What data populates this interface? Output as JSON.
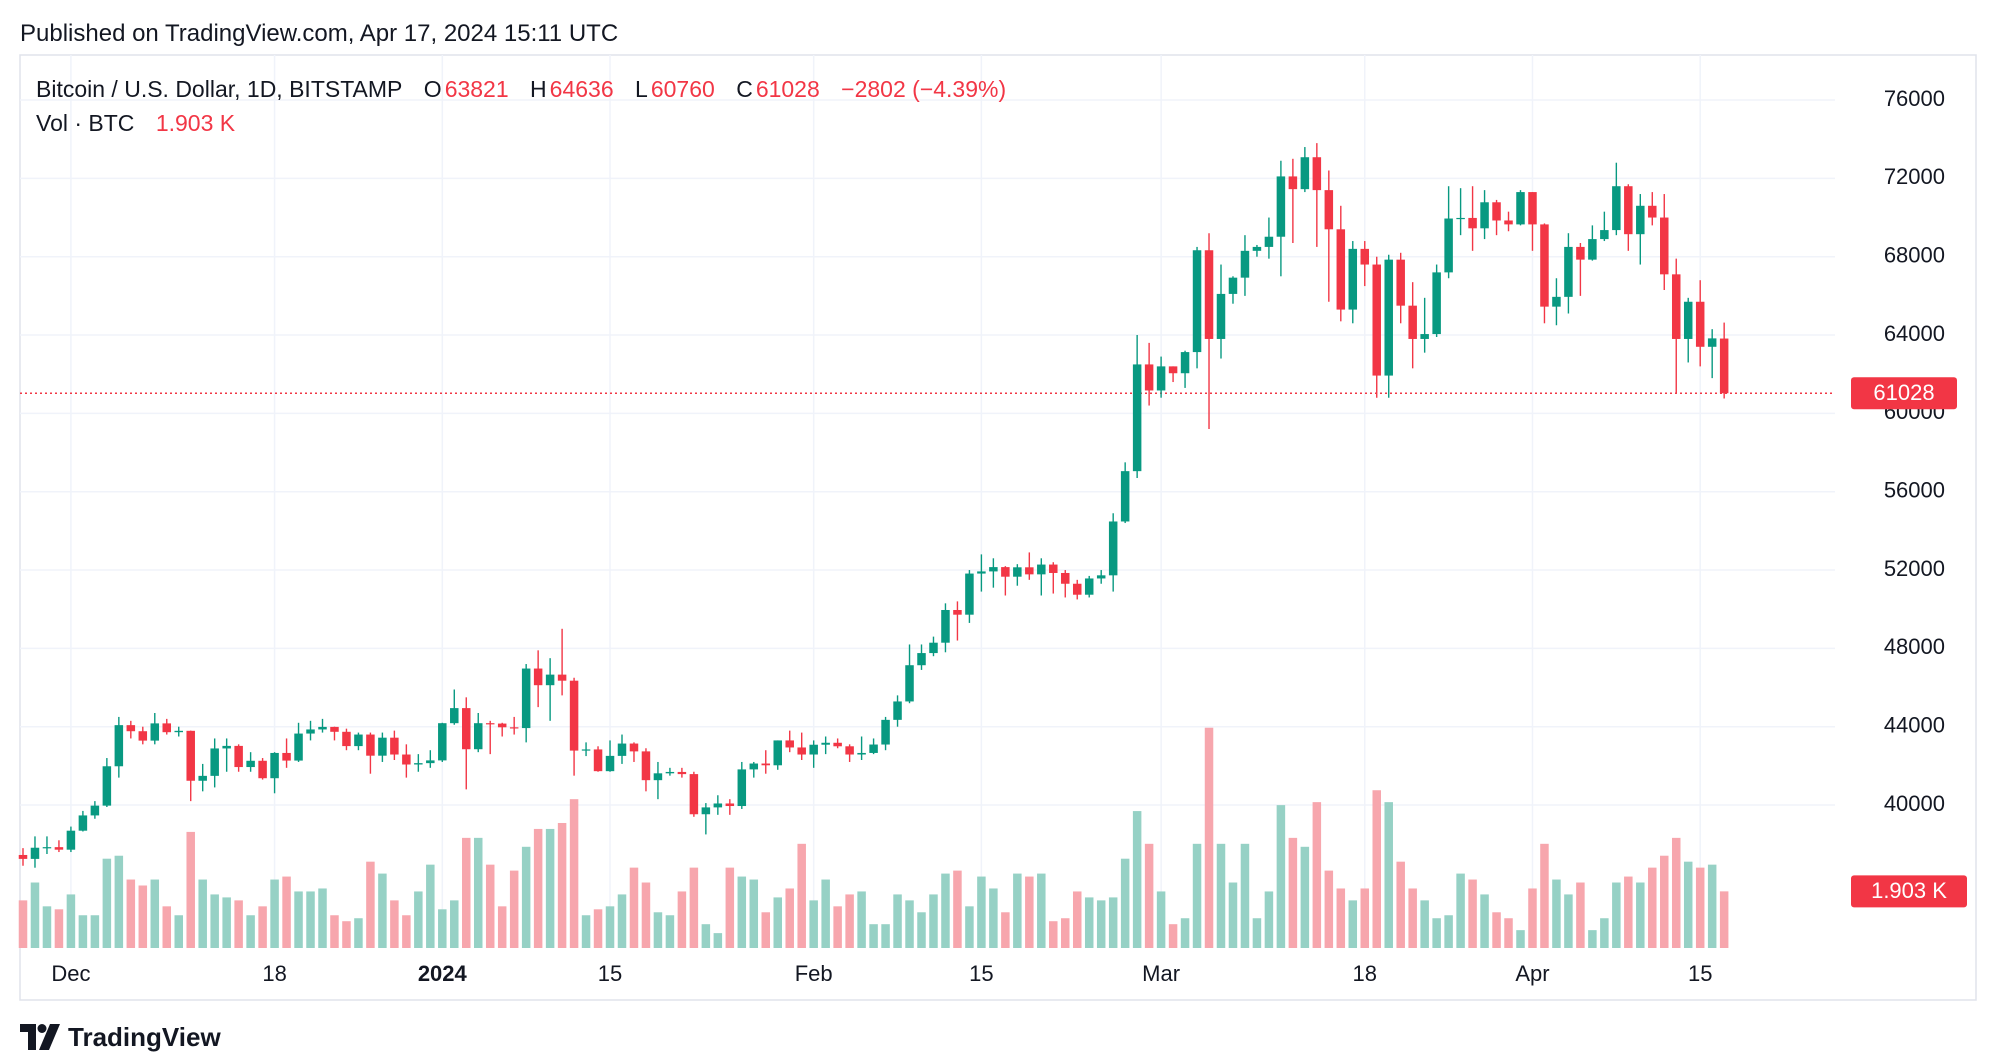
{
  "header": {
    "published": "Published on TradingView.com, Apr 17, 2024 15:11 UTC",
    "brand": "TradingView"
  },
  "chart_data": {
    "type": "candlestick",
    "title": "Bitcoin / U.S. Dollar, 1D, BITSTAMP",
    "legend_labels": {
      "open": "O",
      "high": "H",
      "low": "L",
      "close": "C"
    },
    "change_label": "−2802 (−4.39%)",
    "volume_title": "Vol · BTC",
    "volume_label": "1.903 K",
    "categories": [
      null,
      null,
      null,
      null,
      "Dec",
      null,
      null,
      null,
      null,
      null,
      null,
      null,
      null,
      null,
      null,
      null,
      null,
      null,
      null,
      null,
      null,
      "18",
      null,
      null,
      null,
      null,
      null,
      null,
      null,
      null,
      null,
      null,
      null,
      null,
      null,
      "2024",
      null,
      null,
      null,
      null,
      null,
      null,
      null,
      null,
      null,
      null,
      null,
      null,
      null,
      "15",
      null,
      null,
      null,
      null,
      null,
      null,
      null,
      null,
      null,
      null,
      null,
      null,
      null,
      null,
      null,
      null,
      "Feb",
      null,
      null,
      null,
      null,
      null,
      null,
      null,
      null,
      null,
      null,
      null,
      null,
      null,
      "15",
      null,
      null,
      null,
      null,
      null,
      null,
      null,
      null,
      null,
      null,
      null,
      null,
      null,
      null,
      "Mar",
      null,
      null,
      null,
      null,
      null,
      null,
      null,
      null,
      null,
      null,
      null,
      null,
      null,
      null,
      null,
      null,
      "18",
      null,
      null,
      null,
      null,
      null,
      null,
      null,
      null,
      null,
      null,
      null,
      null,
      null,
      "Apr",
      null,
      null,
      null,
      null,
      null,
      null,
      null,
      null,
      null,
      null,
      null,
      null,
      null,
      "15",
      null,
      null
    ],
    "open": [
      37450,
      37250,
      37820,
      37850,
      37720,
      38690,
      39470,
      39970,
      41980,
      44080,
      43770,
      43290,
      44170,
      43720,
      43790,
      41240,
      41490,
      42890,
      43020,
      41940,
      42260,
      41370,
      42660,
      42270,
      43650,
      43860,
      43990,
      43740,
      43010,
      43600,
      42520,
      43440,
      42580,
      42070,
      42140,
      42280,
      44180,
      44950,
      42850,
      44180,
      44160,
      43970,
      43930,
      46970,
      46120,
      46660,
      46350,
      42780,
      42840,
      41730,
      42510,
      43140,
      42740,
      41270,
      41620,
      41690,
      41580,
      39530,
      39880,
      40080,
      39950,
      41820,
      42120,
      42030,
      43300,
      42940,
      42580,
      43080,
      43180,
      43000,
      42580,
      42660,
      43090,
      44350,
      45290,
      47140,
      47760,
      48290,
      49960,
      49720,
      51820,
      51930,
      52150,
      51660,
      52140,
      51780,
      52280,
      51850,
      51300,
      50740,
      51570,
      51730,
      54480,
      57050,
      62500,
      61170,
      62400,
      62050,
      63130,
      68330,
      63800,
      66100,
      66930,
      68300,
      68500,
      69020,
      72100,
      71450,
      73080,
      71400,
      69400,
      65300,
      68400,
      67600,
      61930,
      67850,
      65500,
      63800,
      64050,
      67200,
      69950,
      69980,
      69450,
      70780,
      69850,
      69650,
      71300,
      69650,
      65450,
      65950,
      68500,
      67850,
      68900,
      69360,
      71600,
      69150,
      70600,
      70000,
      67100,
      63800,
      65700,
      63400,
      63821
    ],
    "high": [
      37800,
      38400,
      38400,
      38200,
      38900,
      39700,
      40200,
      42400,
      44500,
      44300,
      44000,
      44700,
      44400,
      44000,
      43800,
      42100,
      43400,
      43400,
      43100,
      42700,
      42400,
      42700,
      43400,
      44200,
      44300,
      44400,
      44000,
      43900,
      43700,
      43700,
      43700,
      43800,
      43100,
      42600,
      42800,
      44200,
      45900,
      45500,
      44700,
      44300,
      44200,
      44500,
      47200,
      47900,
      47500,
      49000,
      46500,
      43200,
      43000,
      43300,
      43600,
      43200,
      42900,
      42200,
      41900,
      41900,
      41700,
      40100,
      40500,
      40300,
      42200,
      42200,
      42800,
      43300,
      43800,
      43700,
      43300,
      43500,
      43400,
      43100,
      43500,
      43400,
      44500,
      45600,
      48200,
      48200,
      48600,
      50300,
      50400,
      52000,
      52800,
      52600,
      52200,
      52300,
      52900,
      52600,
      52400,
      52000,
      51500,
      51700,
      52000,
      54900,
      57500,
      64000,
      63600,
      62900,
      62400,
      63200,
      68500,
      69200,
      67600,
      67000,
      69100,
      68600,
      70000,
      72900,
      73000,
      73600,
      73800,
      72400,
      70600,
      68800,
      68800,
      68000,
      68100,
      68200,
      66700,
      65900,
      67600,
      71600,
      71500,
      71600,
      71400,
      70900,
      70300,
      71400,
      71300,
      69700,
      66900,
      69200,
      68700,
      69600,
      70300,
      72800,
      71700,
      71200,
      71300,
      71200,
      67900,
      65900,
      66800,
      64300,
      64636
    ],
    "low": [
      36900,
      36800,
      37500,
      37600,
      37600,
      38650,
      39300,
      39900,
      41400,
      43400,
      43100,
      43100,
      43600,
      43500,
      40200,
      40700,
      40900,
      41700,
      41700,
      41700,
      41300,
      40600,
      41900,
      42200,
      43300,
      43700,
      43300,
      42800,
      42800,
      41600,
      42200,
      42300,
      41400,
      41700,
      41900,
      42200,
      44100,
      40800,
      42700,
      42600,
      43500,
      43600,
      43200,
      45000,
      44300,
      45600,
      41500,
      42500,
      41700,
      41700,
      42100,
      42200,
      40700,
      40300,
      41500,
      41400,
      39400,
      38500,
      39500,
      39500,
      39800,
      41400,
      41600,
      41800,
      42700,
      42300,
      41900,
      42600,
      42900,
      42200,
      42300,
      42600,
      42800,
      44000,
      45200,
      46900,
      47600,
      47800,
      48400,
      49300,
      50900,
      51100,
      50700,
      51200,
      51500,
      50700,
      50800,
      50600,
      50500,
      50600,
      51300,
      50900,
      54400,
      56700,
      60400,
      60800,
      61600,
      61300,
      62300,
      59200,
      62800,
      65600,
      66000,
      68000,
      67900,
      67000,
      68700,
      71300,
      68500,
      65700,
      64700,
      64600,
      66500,
      60800,
      60800,
      64600,
      62300,
      63100,
      63900,
      66900,
      69100,
      68300,
      68900,
      69100,
      69300,
      69600,
      68300,
      64600,
      64500,
      65100,
      66000,
      67800,
      68800,
      69100,
      68300,
      67600,
      69600,
      66300,
      61000,
      62600,
      62400,
      61800,
      60760
    ],
    "close": [
      37250,
      37820,
      37850,
      37720,
      38690,
      39470,
      39970,
      41980,
      44080,
      43770,
      43290,
      44170,
      43720,
      43790,
      41240,
      41490,
      42890,
      43020,
      41940,
      42260,
      41370,
      42660,
      42270,
      43650,
      43860,
      43990,
      43740,
      43010,
      43600,
      42520,
      43440,
      42580,
      42070,
      42140,
      42280,
      44180,
      44950,
      42850,
      44180,
      44160,
      43970,
      43930,
      46970,
      46120,
      46660,
      46350,
      42780,
      42840,
      41730,
      42510,
      43140,
      42740,
      41270,
      41620,
      41690,
      41580,
      39530,
      39880,
      40080,
      39950,
      41820,
      42120,
      42030,
      43300,
      42940,
      42580,
      43080,
      43180,
      43000,
      42580,
      42660,
      43090,
      44350,
      45290,
      47140,
      47760,
      48290,
      49960,
      49720,
      51820,
      51930,
      52150,
      51660,
      52140,
      51780,
      52280,
      51850,
      51300,
      50740,
      51570,
      51730,
      54480,
      57050,
      62500,
      61170,
      62400,
      62050,
      63130,
      68330,
      63800,
      66100,
      66930,
      68300,
      68500,
      69020,
      72100,
      71450,
      73080,
      71400,
      69400,
      65300,
      68400,
      67600,
      61930,
      67850,
      65500,
      63800,
      64050,
      67200,
      69950,
      69980,
      69450,
      70780,
      69850,
      69650,
      71300,
      69650,
      65450,
      65950,
      68500,
      67850,
      68900,
      69360,
      71600,
      69150,
      70600,
      70000,
      67100,
      63800,
      65700,
      63400,
      63830,
      61028
    ],
    "volume": [
      1.6,
      2.2,
      1.4,
      1.3,
      1.8,
      1.1,
      1.1,
      3.0,
      3.1,
      2.3,
      2.1,
      2.3,
      1.4,
      1.1,
      3.9,
      2.3,
      1.8,
      1.7,
      1.6,
      1.1,
      1.4,
      2.3,
      2.4,
      1.9,
      1.9,
      2.0,
      1.1,
      0.9,
      1.0,
      2.9,
      2.5,
      1.6,
      1.1,
      1.9,
      2.8,
      1.3,
      1.6,
      3.7,
      3.7,
      2.8,
      1.4,
      2.6,
      3.4,
      4.0,
      4.0,
      4.2,
      5.0,
      1.1,
      1.3,
      1.4,
      1.8,
      2.7,
      2.2,
      1.2,
      1.1,
      1.9,
      2.7,
      0.8,
      0.5,
      2.7,
      2.4,
      2.3,
      1.2,
      1.7,
      2.0,
      3.5,
      1.6,
      2.3,
      1.4,
      1.8,
      1.9,
      0.8,
      0.8,
      1.8,
      1.6,
      1.2,
      1.8,
      2.5,
      2.6,
      1.4,
      2.4,
      2.0,
      1.2,
      2.5,
      2.4,
      2.5,
      0.9,
      1.0,
      1.9,
      1.7,
      1.6,
      1.7,
      3.0,
      4.6,
      3.5,
      1.9,
      0.8,
      1.0,
      3.5,
      7.4,
      3.5,
      2.2,
      3.5,
      1.0,
      1.9,
      4.8,
      3.7,
      3.4,
      4.9,
      2.6,
      2.0,
      1.6,
      2.0,
      5.3,
      4.9,
      2.9,
      2.0,
      1.6,
      1.0,
      1.1,
      2.5,
      2.3,
      1.8,
      1.2,
      1.0,
      0.6,
      2.0,
      3.5,
      2.3,
      1.8,
      2.2,
      0.6,
      1.0,
      2.2,
      2.4,
      2.2,
      2.7,
      3.1,
      3.7,
      2.9,
      2.7,
      2.8,
      1.903
    ],
    "ylim": [
      32700,
      78300
    ],
    "yticks": [
      40000,
      44000,
      48000,
      52000,
      56000,
      60000,
      64000,
      68000,
      72000,
      76000
    ],
    "volume_ylim": [
      0,
      30
    ],
    "grid": true,
    "up_color": "#089981",
    "down_color": "#f23645",
    "up_volume_color": "#96d1c5",
    "down_volume_color": "#f7a6ad"
  }
}
